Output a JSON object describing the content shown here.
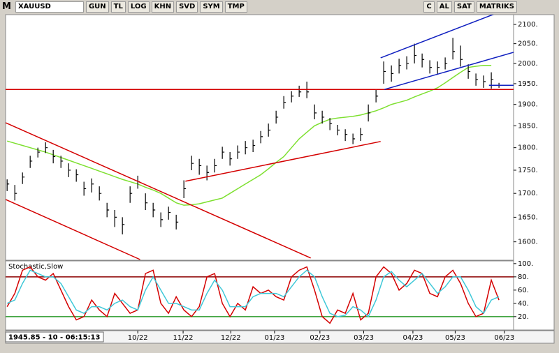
{
  "toolbar": {
    "logo": "M",
    "symbol": "XAUUSD",
    "buttons": [
      "GUN",
      "TL",
      "LOG",
      "KHN",
      "SVD",
      "SYM",
      "TMP"
    ],
    "right": [
      "C",
      "AL",
      "SAT",
      "MATRIKS"
    ]
  },
  "status": "1945.85 - 10 - 06:15:13",
  "chart_data": [
    {
      "type": "ohlc",
      "log": true,
      "xlim": [
        -0.2,
        65.9
      ],
      "ylim": [
        1565,
        2124
      ],
      "yticks": [
        {
          "value": 1600,
          "label": "1600."
        },
        {
          "value": 1650,
          "label": "1650."
        },
        {
          "value": 1700,
          "label": "1700."
        },
        {
          "value": 1750,
          "label": "1750."
        },
        {
          "value": 1800,
          "label": "1800."
        },
        {
          "value": 1850,
          "label": "1850."
        },
        {
          "value": 1900,
          "label": "1900."
        },
        {
          "value": 1950,
          "label": "1950."
        },
        {
          "value": 2000,
          "label": "2000."
        },
        {
          "value": 2050,
          "label": "2050."
        },
        {
          "value": 2100,
          "label": "2100."
        }
      ],
      "color": "#000000",
      "high": [
        1730,
        1718,
        1745,
        1782,
        1800,
        1812,
        1795,
        1782,
        1765,
        1752,
        1725,
        1732,
        1715,
        1680,
        1665,
        1650,
        1715,
        1738,
        1700,
        1680,
        1660,
        1672,
        1655,
        1728,
        1782,
        1775,
        1760,
        1775,
        1802,
        1790,
        1805,
        1815,
        1818,
        1838,
        1855,
        1885,
        1920,
        1932,
        1945,
        1955,
        1900,
        1885,
        1868,
        1852,
        1842,
        1832,
        1845,
        1900,
        1935,
        2005,
        1995,
        2012,
        2018,
        2050,
        2025,
        2008,
        2005,
        2015,
        2065,
        2045,
        1998,
        1975,
        1970,
        1978,
        1952
      ],
      "low": [
        1705,
        1685,
        1720,
        1755,
        1778,
        1788,
        1765,
        1755,
        1735,
        1725,
        1695,
        1702,
        1685,
        1650,
        1630,
        1615,
        1680,
        1710,
        1665,
        1650,
        1630,
        1645,
        1625,
        1690,
        1750,
        1740,
        1728,
        1745,
        1775,
        1760,
        1775,
        1785,
        1790,
        1810,
        1825,
        1855,
        1890,
        1905,
        1918,
        1915,
        1865,
        1855,
        1840,
        1828,
        1815,
        1808,
        1815,
        1860,
        1905,
        1950,
        1955,
        1975,
        1985,
        2000,
        1990,
        1975,
        1972,
        1985,
        2010,
        1992,
        1962,
        1945,
        1940,
        1938,
        1940
      ],
      "close": [
        1720,
        1700,
        1735,
        1770,
        1790,
        1800,
        1780,
        1770,
        1750,
        1740,
        1710,
        1720,
        1700,
        1665,
        1650,
        1635,
        1700,
        1725,
        1680,
        1665,
        1645,
        1660,
        1640,
        1710,
        1765,
        1760,
        1745,
        1760,
        1790,
        1775,
        1790,
        1800,
        1805,
        1825,
        1840,
        1870,
        1905,
        1920,
        1930,
        1930,
        1880,
        1870,
        1855,
        1840,
        1830,
        1820,
        1830,
        1880,
        1920,
        1980,
        1975,
        1995,
        2000,
        2020,
        2010,
        1990,
        1990,
        2000,
        2030,
        2010,
        1980,
        1960,
        1955,
        1960,
        1946
      ],
      "ma": {
        "color": "#7ee030",
        "values": [
          1815,
          1810,
          1805,
          1800,
          1795,
          1790,
          1784,
          1778,
          1772,
          1766,
          1760,
          1754,
          1748,
          1742,
          1736,
          1730,
          1725,
          1720,
          1713,
          1707,
          1700,
          1690,
          1680,
          1675,
          1676,
          1678,
          1682,
          1686,
          1690,
          1700,
          1710,
          1720,
          1730,
          1740,
          1753,
          1767,
          1780,
          1800,
          1820,
          1835,
          1850,
          1858,
          1865,
          1868,
          1870,
          1872,
          1875,
          1880,
          1885,
          1892,
          1900,
          1905,
          1910,
          1918,
          1925,
          1932,
          1940,
          1952,
          1965,
          1978,
          1990,
          1993,
          1995,
          1995,
          null
        ]
      },
      "lines": [
        {
          "color": "#d40000",
          "x": [
            -0.2,
            39.5
          ],
          "y": [
            1857,
            1568
          ]
        },
        {
          "color": "#d40000",
          "x": [
            -0.2,
            17.3
          ],
          "y": [
            1687,
            1565
          ]
        },
        {
          "color": "#d40000",
          "x": [
            23.2,
            48.6
          ],
          "y": [
            1726,
            1814
          ]
        },
        {
          "color": "#d40000",
          "x": [
            -0.2,
            65.9
          ],
          "y": [
            1936,
            1936
          ]
        },
        {
          "color": "#1020c0",
          "x": [
            49.1,
            65.9
          ],
          "y": [
            1936,
            2028
          ]
        },
        {
          "color": "#1020c0",
          "x": [
            48.6,
            64.1
          ],
          "y": [
            2014,
            2133
          ]
        },
        {
          "color": "#1020c0",
          "x": [
            62.7,
            65.9
          ],
          "y": [
            1946,
            1946
          ]
        }
      ]
    },
    {
      "type": "line",
      "title": "Stochastic,Slow",
      "xlim": [
        -0.2,
        65.9
      ],
      "ylim": [
        3,
        103
      ],
      "yticks": [
        {
          "value": 20,
          "label": "20."
        },
        {
          "value": 40,
          "label": "40."
        },
        {
          "value": 60,
          "label": "60."
        },
        {
          "value": 80,
          "label": "80."
        },
        {
          "value": 100,
          "label": "100."
        }
      ],
      "xticks": [
        {
          "value": 17,
          "label": "10/22"
        },
        {
          "value": 22.9,
          "label": "11/22"
        },
        {
          "value": 29.1,
          "label": "12/22"
        },
        {
          "value": 34.8,
          "label": "01/23"
        },
        {
          "value": 40.7,
          "label": "02/23"
        },
        {
          "value": 46.4,
          "label": "03/23"
        },
        {
          "value": 52.8,
          "label": "04/23"
        },
        {
          "value": 58.3,
          "label": "05/23"
        },
        {
          "value": 64.7,
          "label": "06/23"
        }
      ],
      "hlines": [
        {
          "value": 80,
          "color": "#8b0000"
        },
        {
          "value": 20,
          "color": "#2a9a2a"
        }
      ],
      "series": [
        {
          "color": "#d40000",
          "values": [
            35,
            55,
            90,
            95,
            80,
            75,
            85,
            60,
            35,
            15,
            20,
            45,
            30,
            20,
            55,
            40,
            25,
            30,
            85,
            90,
            40,
            25,
            50,
            30,
            20,
            35,
            80,
            85,
            40,
            20,
            40,
            30,
            65,
            55,
            60,
            50,
            45,
            80,
            90,
            95,
            60,
            20,
            10,
            30,
            25,
            55,
            15,
            25,
            80,
            95,
            85,
            60,
            70,
            90,
            85,
            55,
            50,
            80,
            90,
            70,
            40,
            20,
            25,
            75,
            45
          ]
        },
        {
          "color": "#3fc8d8",
          "values": [
            40,
            45,
            70,
            90,
            85,
            80,
            80,
            70,
            50,
            30,
            25,
            35,
            35,
            30,
            40,
            45,
            35,
            30,
            60,
            80,
            60,
            40,
            40,
            35,
            30,
            30,
            55,
            75,
            60,
            35,
            35,
            35,
            50,
            55,
            55,
            55,
            50,
            65,
            80,
            90,
            80,
            50,
            25,
            20,
            22,
            35,
            30,
            20,
            45,
            80,
            88,
            75,
            65,
            75,
            85,
            70,
            55,
            65,
            80,
            80,
            60,
            35,
            25,
            45,
            50
          ]
        }
      ]
    }
  ]
}
